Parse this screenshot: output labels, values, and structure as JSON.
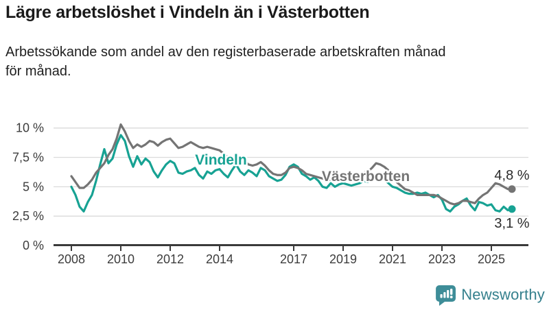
{
  "page": {
    "title": "Lägre arbetslöshet i Vindeln än i Västerbotten",
    "subtitle": "Arbetssökande som andel av den registerbaserade arbetskraften månad\nför månad."
  },
  "footer": {
    "brand": "Newsworthy",
    "logo_icon": "speech-bubble-bar-chart",
    "brand_color": "#35808d",
    "icon_color": "#3e8d98"
  },
  "chart_data": {
    "type": "line",
    "title": "Lägre arbetslöshet i Vindeln än i Västerbotten",
    "x_unit": "decimal_year_monthly",
    "x_start": 2008.0,
    "x_step": 0.166667,
    "x_ticks": [
      "2008",
      "2010",
      "2012",
      "2014",
      "2017",
      "2019",
      "2021",
      "2023",
      "2025"
    ],
    "x_tick_years": [
      2008,
      2010,
      2012,
      2014,
      2017,
      2019,
      2021,
      2023,
      2025
    ],
    "y_ticks": [
      0,
      2.5,
      5,
      7.5,
      10
    ],
    "y_tick_labels": [
      "0 %",
      "2,5 %",
      "5 %",
      "7,5 %",
      "10 %"
    ],
    "ylim": [
      0,
      10.5
    ],
    "xlim": [
      2007.3,
      2026.5
    ],
    "grid": true,
    "legend_position": "inline-labels-on-lines",
    "colors": {
      "grid": "#dadada",
      "axis": "#3a3a3a",
      "tick_text": "#3c3c3c",
      "value_text": "#2b2b2b"
    },
    "series": [
      {
        "name": "Vindeln",
        "color": "#17a293",
        "end_label": "3,1 %",
        "end_value": 3.1,
        "values": [
          5.0,
          4.3,
          3.3,
          2.9,
          3.7,
          4.3,
          5.5,
          6.9,
          8.2,
          7.0,
          7.4,
          8.6,
          9.4,
          8.9,
          7.6,
          6.7,
          7.6,
          6.9,
          7.4,
          7.1,
          6.3,
          5.8,
          6.4,
          6.9,
          7.2,
          7.0,
          6.2,
          6.1,
          6.3,
          6.4,
          6.6,
          6.0,
          5.7,
          6.3,
          6.1,
          6.4,
          6.5,
          6.1,
          5.8,
          6.4,
          6.9,
          6.3,
          6.0,
          6.4,
          6.2,
          5.9,
          6.6,
          6.4,
          5.9,
          5.7,
          5.5,
          5.6,
          6.0,
          6.7,
          6.9,
          6.7,
          6.1,
          5.9,
          5.6,
          5.8,
          5.5,
          5.0,
          4.9,
          5.3,
          5.0,
          5.2,
          5.3,
          5.2,
          5.1,
          5.2,
          5.3,
          5.5,
          5.4,
          5.7,
          6.0,
          5.9,
          5.6,
          5.3,
          5.0,
          4.9,
          4.7,
          4.5,
          4.4,
          4.4,
          4.5,
          4.4,
          4.5,
          4.3,
          4.1,
          4.3,
          3.9,
          3.1,
          2.9,
          3.3,
          3.5,
          3.8,
          4.0,
          3.4,
          3.0,
          3.7,
          3.6,
          3.4,
          3.5,
          3.0,
          2.9,
          3.3,
          3.0,
          3.1
        ]
      },
      {
        "name": "Västerbotten",
        "color": "#747474",
        "end_label": "4,8 %",
        "end_value": 4.8,
        "values": [
          5.9,
          5.4,
          4.9,
          4.9,
          5.2,
          5.6,
          6.2,
          6.6,
          7.0,
          7.7,
          8.2,
          9.1,
          10.3,
          9.7,
          8.9,
          8.3,
          8.6,
          8.4,
          8.6,
          8.9,
          8.8,
          8.5,
          8.8,
          9.0,
          9.1,
          8.7,
          8.3,
          8.4,
          8.6,
          8.8,
          8.6,
          8.4,
          8.3,
          8.4,
          8.3,
          8.2,
          8.1,
          7.8,
          7.5,
          7.3,
          7.2,
          7.1,
          7.2,
          6.9,
          6.8,
          6.9,
          7.1,
          6.8,
          6.4,
          6.1,
          6.0,
          6.0,
          6.2,
          6.6,
          6.7,
          6.6,
          6.4,
          6.1,
          6.0,
          5.9,
          5.8,
          5.7,
          5.6,
          5.6,
          5.5,
          5.5,
          5.6,
          5.6,
          5.7,
          5.8,
          5.9,
          6.2,
          6.3,
          6.6,
          7.0,
          6.9,
          6.7,
          6.4,
          5.8,
          5.4,
          5.1,
          4.8,
          4.7,
          4.5,
          4.3,
          4.3,
          4.3,
          4.3,
          4.3,
          4.2,
          4.0,
          3.8,
          3.6,
          3.5,
          3.6,
          3.8,
          3.8,
          3.7,
          3.6,
          4.0,
          4.3,
          4.5,
          4.9,
          5.3,
          5.2,
          5.0,
          4.8,
          4.8
        ]
      }
    ]
  }
}
